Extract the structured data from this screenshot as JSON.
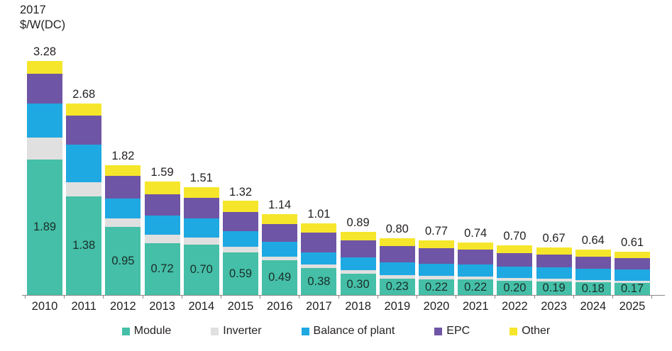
{
  "chart_data": {
    "type": "bar",
    "stacked": true,
    "title": "",
    "unit_line1": "2017",
    "unit_line2": "$/W(DC)",
    "xlabel": "",
    "ylabel": "2017 $/W(DC)",
    "grid": false,
    "legend_position": "bottom",
    "categories": [
      "2010",
      "2011",
      "2012",
      "2013",
      "2014",
      "2015",
      "2016",
      "2017",
      "2018",
      "2019",
      "2020",
      "2021",
      "2022",
      "2023",
      "2024",
      "2025"
    ],
    "totals": [
      3.28,
      2.68,
      1.82,
      1.59,
      1.51,
      1.32,
      1.14,
      1.01,
      0.89,
      0.8,
      0.77,
      0.74,
      0.7,
      0.67,
      0.64,
      0.61
    ],
    "total_labels": [
      "3.28",
      "2.68",
      "1.82",
      "1.59",
      "1.51",
      "1.32",
      "1.14",
      "1.01",
      "0.89",
      "0.80",
      "0.77",
      "0.74",
      "0.70",
      "0.67",
      "0.64",
      "0.61"
    ],
    "module_value_labels": [
      "1.89",
      "1.38",
      "0.95",
      "0.72",
      "0.70",
      "0.59",
      "0.49",
      "0.38",
      "0.30",
      "0.23",
      "0.22",
      "0.22",
      "0.20",
      "0.19",
      "0.18",
      "0.17"
    ],
    "series": [
      {
        "name": "Module",
        "color": "#45BFA7",
        "values": [
          1.89,
          1.38,
          0.95,
          0.72,
          0.7,
          0.59,
          0.49,
          0.38,
          0.3,
          0.23,
          0.22,
          0.22,
          0.2,
          0.19,
          0.18,
          0.17
        ]
      },
      {
        "name": "Inverter",
        "color": "#E0E0E0",
        "values": [
          0.31,
          0.2,
          0.12,
          0.12,
          0.1,
          0.08,
          0.05,
          0.05,
          0.05,
          0.05,
          0.05,
          0.04,
          0.04,
          0.04,
          0.03,
          0.03
        ]
      },
      {
        "name": "Balance of plant",
        "color": "#1FA9E2",
        "values": [
          0.48,
          0.52,
          0.28,
          0.27,
          0.27,
          0.22,
          0.21,
          0.17,
          0.18,
          0.18,
          0.17,
          0.17,
          0.16,
          0.16,
          0.16,
          0.16
        ]
      },
      {
        "name": "EPC",
        "color": "#6F55A5",
        "values": [
          0.42,
          0.41,
          0.32,
          0.3,
          0.29,
          0.27,
          0.25,
          0.28,
          0.24,
          0.23,
          0.22,
          0.21,
          0.19,
          0.18,
          0.17,
          0.16
        ]
      },
      {
        "name": "Other",
        "color": "#F6E62B",
        "values": [
          0.18,
          0.17,
          0.15,
          0.18,
          0.15,
          0.16,
          0.14,
          0.13,
          0.12,
          0.11,
          0.11,
          0.1,
          0.11,
          0.1,
          0.1,
          0.09
        ]
      }
    ],
    "ylim": [
      0,
      3.4
    ],
    "axis_color": "#8a8a8a",
    "text_color": "#231f20"
  }
}
